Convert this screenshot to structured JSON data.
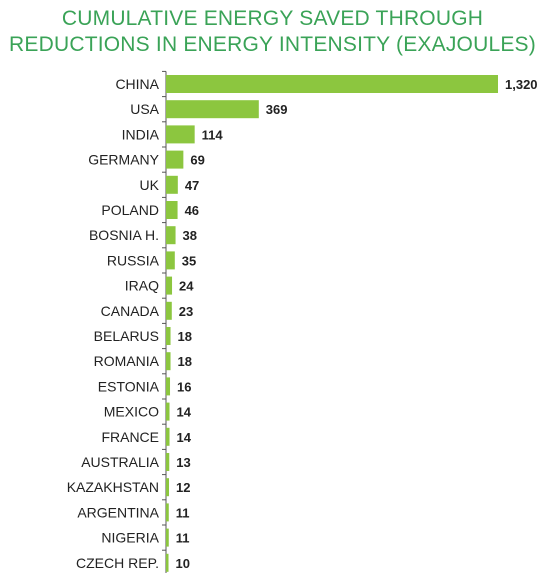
{
  "chart_data": {
    "type": "bar",
    "orientation": "horizontal",
    "title_line1": "CUMULATIVE ENERGY SAVED THROUGH",
    "title_line2": "REDUCTIONS IN ENERGY INTENSITY (EXAJOULES)",
    "categories": [
      "CHINA",
      "USA",
      "INDIA",
      "GERMANY",
      "UK",
      "POLAND",
      "BOSNIA H.",
      "RUSSIA",
      "IRAQ",
      "CANADA",
      "BELARUS",
      "ROMANIA",
      "ESTONIA",
      "MEXICO",
      "FRANCE",
      "AUSTRALIA",
      "KAZAKHSTAN",
      "ARGENTINA",
      "NIGERIA",
      "CZECH REP."
    ],
    "values": [
      1320,
      369,
      114,
      69,
      47,
      46,
      38,
      35,
      24,
      23,
      18,
      18,
      16,
      14,
      14,
      13,
      12,
      11,
      11,
      10
    ],
    "value_labels": [
      "1,320",
      "369",
      "114",
      "69",
      "47",
      "46",
      "38",
      "35",
      "24",
      "23",
      "18",
      "18",
      "16",
      "14",
      "14",
      "13",
      "12",
      "11",
      "11",
      "10"
    ],
    "bar_color": "#8cc63f",
    "title_color": "#3aa357",
    "xlim": [
      0,
      1320
    ],
    "grid": false,
    "legend": "none"
  }
}
